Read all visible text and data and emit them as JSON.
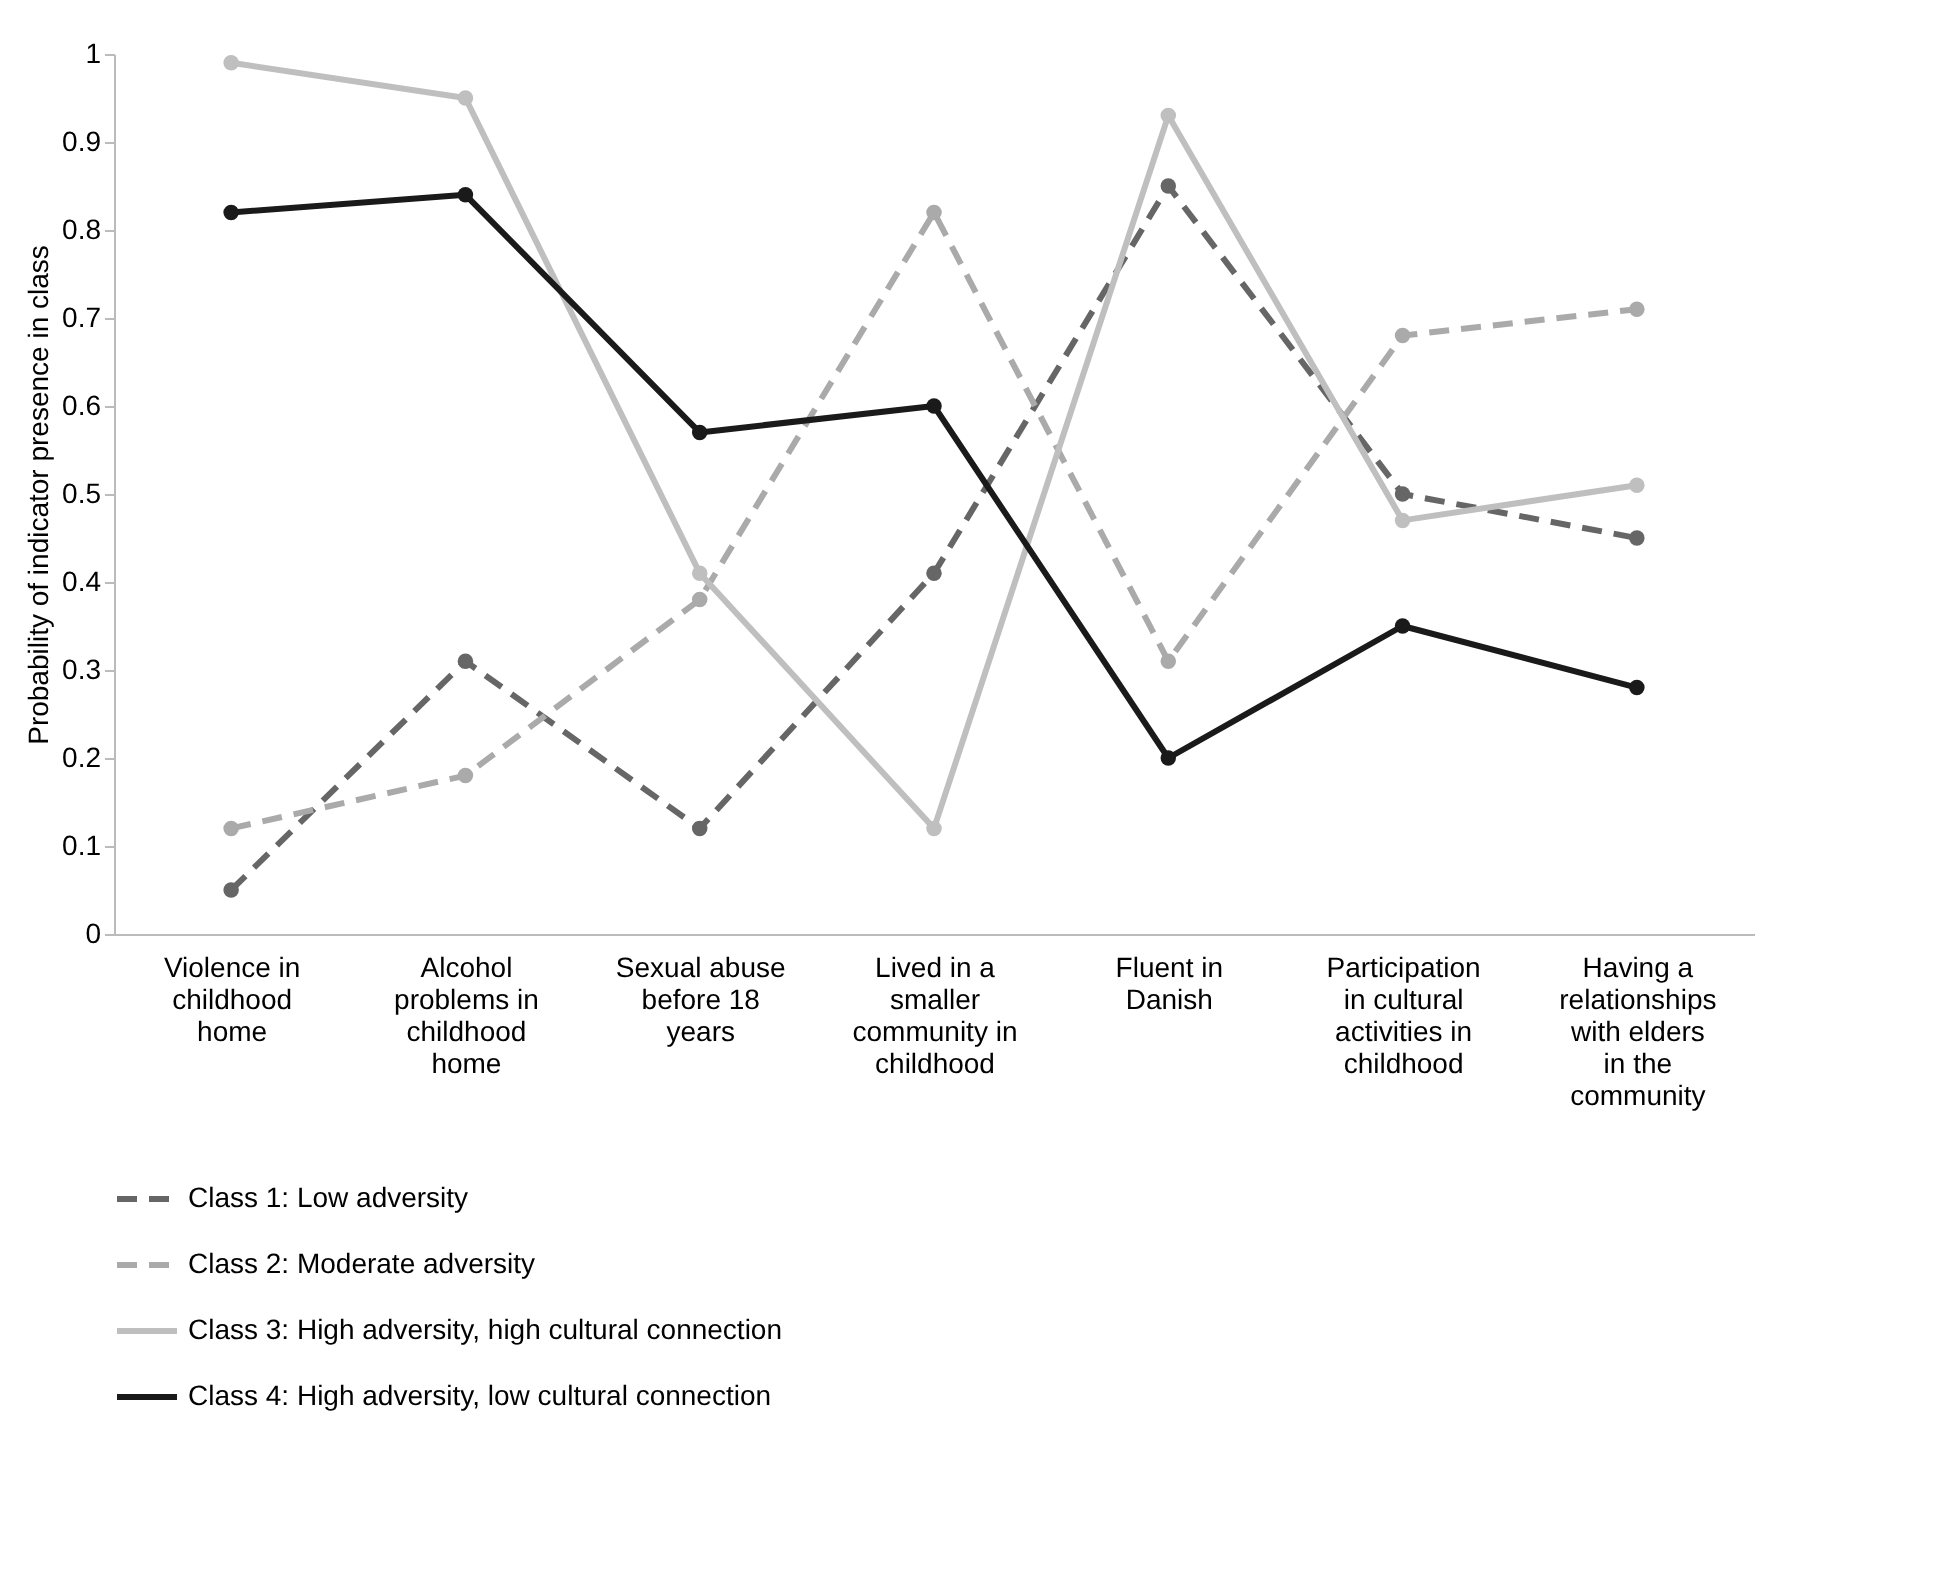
{
  "chart_data": {
    "type": "line",
    "ylabel": "Probability of indicator presence in class",
    "categories": [
      "Violence in childhood home",
      "Alcohol problems in childhood home",
      "Sexual abuse before 18 years",
      "Lived in a smaller community in childhood",
      "Fluent in Danish",
      "Participation in cultural activities in childhood",
      "Having a relationships with elders in the community"
    ],
    "series": [
      {
        "name": "Class 1: Low adversity",
        "color": "#666666",
        "line_style": "dashed",
        "values": [
          0.05,
          0.31,
          0.12,
          0.41,
          0.85,
          0.5,
          0.45
        ]
      },
      {
        "name": "Class 2: Moderate adversity",
        "color": "#aaaaaa",
        "line_style": "dashed",
        "values": [
          0.12,
          0.18,
          0.38,
          0.82,
          0.31,
          0.68,
          0.71
        ]
      },
      {
        "name": "Class 3: High adversity, high cultural connection",
        "color": "#bfbfbf",
        "line_style": "solid",
        "values": [
          0.99,
          0.95,
          0.41,
          0.12,
          0.93,
          0.47,
          0.51
        ]
      },
      {
        "name": "Class 4: High adversity, low cultural connection",
        "color": "#1a1a1a",
        "line_style": "solid",
        "values": [
          0.82,
          0.84,
          0.57,
          0.6,
          0.2,
          0.35,
          0.28
        ]
      }
    ],
    "ylim": [
      0,
      1
    ],
    "yticks": [
      0,
      0.1,
      0.2,
      0.3,
      0.4,
      0.5,
      0.6,
      0.7,
      0.8,
      0.9,
      1
    ],
    "marker": "circle",
    "legend": "bottom",
    "grid": false
  }
}
